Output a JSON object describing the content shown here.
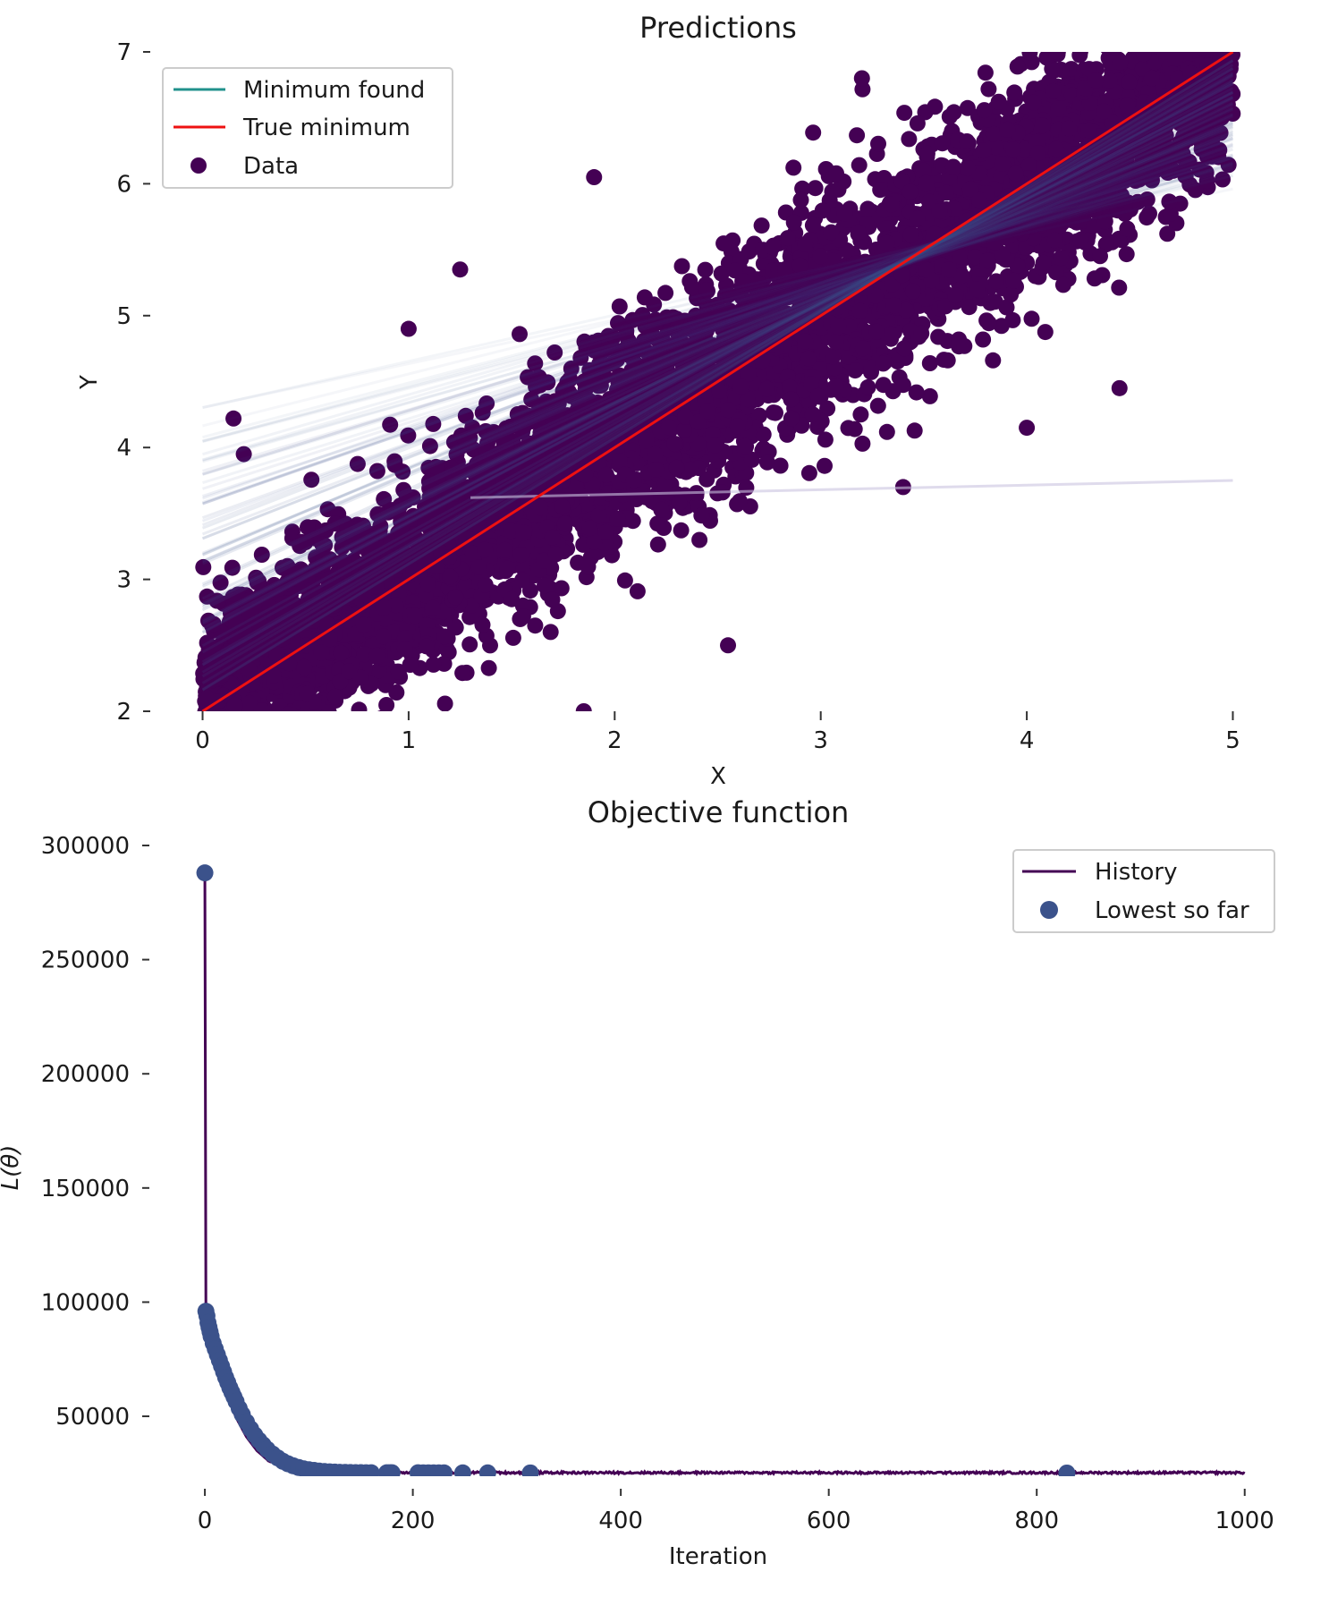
{
  "chart_data": [
    {
      "type": "scatter",
      "title": "Predictions",
      "xlabel": "X",
      "ylabel": "Y",
      "xlim": [
        -0.05,
        5.05
      ],
      "ylim": [
        2,
        7
      ],
      "xticks": [
        "0",
        "1",
        "2",
        "3",
        "4",
        "5"
      ],
      "yticks": [
        "2",
        "3",
        "4",
        "5",
        "6",
        "7"
      ],
      "grid": false,
      "legend_position": "top-left",
      "legend": [
        "Minimum found",
        "True minimum",
        "Data"
      ],
      "series": [
        {
          "name": "Data",
          "kind": "scatter",
          "color": "#440154",
          "description_of_spread": "dense cloud around y = x + 2 with noise sd ≈ 0.4",
          "sample_points": [
            {
              "x": 0.15,
              "y": 4.22
            },
            {
              "x": 0.2,
              "y": 3.95
            },
            {
              "x": 1.0,
              "y": 4.9
            },
            {
              "x": 1.25,
              "y": 5.35
            },
            {
              "x": 1.9,
              "y": 6.05
            },
            {
              "x": 3.2,
              "y": 6.8
            },
            {
              "x": 4.45,
              "y": 4.45
            },
            {
              "x": 4.0,
              "y": 4.15
            },
            {
              "x": 3.4,
              "y": 3.7
            },
            {
              "x": 2.55,
              "y": 2.5
            },
            {
              "x": 1.85,
              "y": 2.0
            }
          ]
        },
        {
          "name": "True minimum",
          "kind": "line",
          "color": "#ee1111",
          "x": [
            0,
            5
          ],
          "y": [
            2,
            7
          ]
        },
        {
          "name": "Minimum found",
          "kind": "line",
          "color": "#21918c",
          "x": [
            0,
            5
          ],
          "y": [
            2.05,
            6.95
          ]
        }
      ]
    },
    {
      "type": "line",
      "title": "Objective function",
      "xlabel": "Iteration",
      "ylabel": "L(θ)",
      "xlim": [
        -25,
        1020
      ],
      "ylim": [
        12000,
        300000
      ],
      "xticks": [
        "0",
        "200",
        "400",
        "600",
        "800",
        "1000"
      ],
      "yticks": [
        "50000",
        "100000",
        "150000",
        "200000",
        "250000",
        "300000"
      ],
      "grid": false,
      "legend_position": "top-right",
      "legend": [
        "History",
        "Lowest so far"
      ],
      "series": [
        {
          "name": "History",
          "kind": "line",
          "color": "#440154",
          "x": [
            0,
            1,
            2,
            5,
            10,
            15,
            20,
            25,
            30,
            40,
            50,
            60,
            70,
            80,
            100,
            120,
            150,
            200,
            300,
            400,
            500,
            600,
            700,
            800,
            900,
            1000
          ],
          "y": [
            288000,
            96000,
            92000,
            85000,
            76000,
            68000,
            61000,
            55000,
            49500,
            41000,
            35000,
            31000,
            29000,
            27500,
            26300,
            25800,
            25500,
            25400,
            25300,
            25300,
            25300,
            25300,
            25300,
            25300,
            25300,
            25300
          ]
        },
        {
          "name": "Lowest so far",
          "kind": "scatter",
          "color": "#3b528b",
          "x": [
            0,
            1,
            2,
            3,
            4,
            5,
            6,
            8,
            10,
            12,
            14,
            16,
            18,
            20,
            22,
            24,
            26,
            28,
            30,
            33,
            36,
            40,
            44,
            48,
            52,
            56,
            60,
            65,
            70,
            75,
            80,
            85,
            90,
            95,
            100,
            105,
            110,
            115,
            120,
            125,
            130,
            135,
            140,
            145,
            150,
            155,
            160,
            175,
            178,
            180,
            205,
            210,
            215,
            220,
            225,
            230,
            248,
            272,
            313,
            829
          ],
          "y": [
            288000,
            96000,
            94000,
            91000,
            89000,
            87000,
            85000,
            82000,
            79500,
            77000,
            74500,
            72000,
            69500,
            67000,
            64800,
            62500,
            60500,
            58500,
            56500,
            53500,
            50800,
            47500,
            44500,
            41800,
            39500,
            37500,
            35500,
            33500,
            31800,
            30300,
            29200,
            28300,
            27600,
            27000,
            26600,
            26300,
            26000,
            25800,
            25650,
            25550,
            25450,
            25400,
            25350,
            25320,
            25300,
            25290,
            25280,
            25270,
            25265,
            25260,
            25250,
            25245,
            25240,
            25235,
            25230,
            25225,
            25220,
            25210,
            25200,
            25150
          ]
        }
      ]
    }
  ]
}
